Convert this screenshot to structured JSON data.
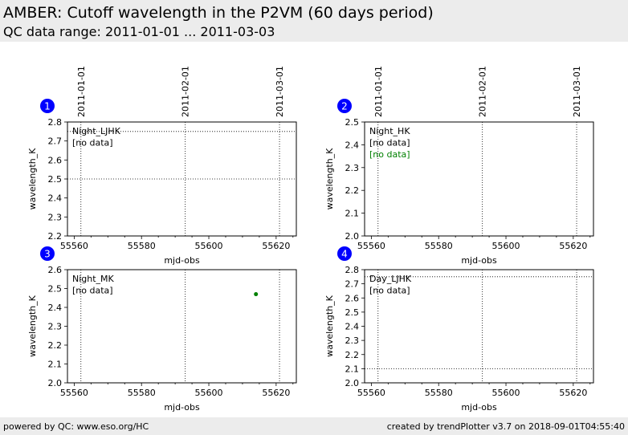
{
  "header": {
    "title": "AMBER: Cutoff wavelength in the P2VM (60 days period)",
    "subtitle": "QC data range: 2011-01-01 ... 2011-03-03"
  },
  "footer": {
    "left": "powered by QC: www.eso.org/HC",
    "right": "created by trendPlotter v3.7 on 2018-09-01T04:55:40"
  },
  "colors": {
    "marker_blue": "#0000ff",
    "point_green": "#008000",
    "header_bg": "#ececec"
  },
  "date_axis": {
    "ticks": [
      {
        "label": "2011-01-01",
        "mjd": 55562
      },
      {
        "label": "2011-02-01",
        "mjd": 55593
      },
      {
        "label": "2011-03-01",
        "mjd": 55621
      }
    ]
  },
  "chart_data": [
    {
      "type": "scatter",
      "panel": "1",
      "xlabel": "mjd-obs",
      "ylabel": "wavelength_K",
      "xlim": [
        55558,
        55626
      ],
      "ylim": [
        2.2,
        2.8
      ],
      "xticks": [
        55560,
        55580,
        55600,
        55620
      ],
      "yticks": [
        2.2,
        2.3,
        2.4,
        2.5,
        2.6,
        2.7,
        2.8
      ],
      "hlines": [
        2.5,
        2.75
      ],
      "notes": [
        {
          "text": "Night_LJHK",
          "color": "#000000"
        },
        {
          "text": "[no data]",
          "color": "#000000"
        }
      ],
      "points": []
    },
    {
      "type": "scatter",
      "panel": "2",
      "xlabel": "mjd-obs",
      "ylabel": "wavelength_K",
      "xlim": [
        55558,
        55626
      ],
      "ylim": [
        2.0,
        2.5
      ],
      "xticks": [
        55560,
        55580,
        55600,
        55620
      ],
      "yticks": [
        2.0,
        2.1,
        2.2,
        2.3,
        2.4,
        2.5
      ],
      "hlines": [],
      "notes": [
        {
          "text": "Night_HK",
          "color": "#000000"
        },
        {
          "text": "[no data]",
          "color": "#000000"
        },
        {
          "text": "[no data]",
          "color": "#008000"
        }
      ],
      "points": []
    },
    {
      "type": "scatter",
      "panel": "3",
      "xlabel": "mjd-obs",
      "ylabel": "wavelength_K",
      "xlim": [
        55558,
        55626
      ],
      "ylim": [
        2.0,
        2.6
      ],
      "xticks": [
        55560,
        55580,
        55600,
        55620
      ],
      "yticks": [
        2.0,
        2.1,
        2.2,
        2.3,
        2.4,
        2.5,
        2.6
      ],
      "hlines": [],
      "notes": [
        {
          "text": "Night_MK",
          "color": "#000000"
        },
        {
          "text": "[no data]",
          "color": "#000000"
        }
      ],
      "points": [
        {
          "x": 55614,
          "y": 2.47,
          "color": "#008000"
        }
      ]
    },
    {
      "type": "scatter",
      "panel": "4",
      "xlabel": "mjd-obs",
      "ylabel": "wavelength_K",
      "xlim": [
        55558,
        55626
      ],
      "ylim": [
        2.0,
        2.8
      ],
      "xticks": [
        55560,
        55580,
        55600,
        55620
      ],
      "yticks": [
        2.0,
        2.1,
        2.2,
        2.3,
        2.4,
        2.5,
        2.6,
        2.7,
        2.8
      ],
      "hlines": [
        2.1,
        2.75
      ],
      "notes": [
        {
          "text": "Day_LJHK",
          "color": "#000000"
        },
        {
          "text": "[no data]",
          "color": "#000000"
        }
      ],
      "points": []
    }
  ]
}
